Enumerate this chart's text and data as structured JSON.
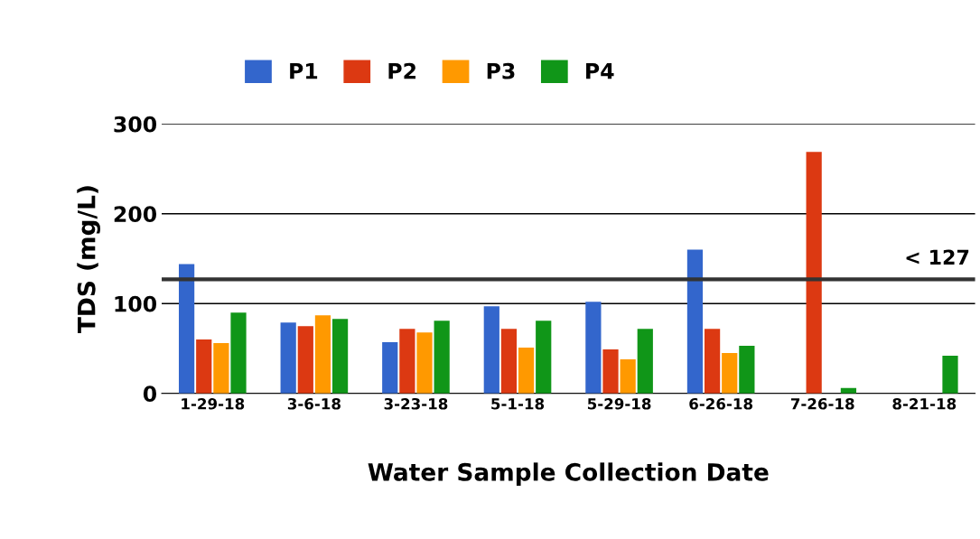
{
  "chart_data": {
    "type": "bar",
    "xlabel": "Water Sample Collection Date",
    "ylabel": "TDS (mg/L)",
    "categories": [
      "1-29-18",
      "3-6-18",
      "3-23-18",
      "5-1-18",
      "5-29-18",
      "6-26-18",
      "7-26-18",
      "8-21-18"
    ],
    "series": [
      {
        "name": "P1",
        "color": "#3366cc",
        "values": [
          144,
          79,
          57,
          97,
          102,
          160,
          null,
          null
        ]
      },
      {
        "name": "P2",
        "color": "#dc3912",
        "values": [
          60,
          75,
          72,
          72,
          49,
          72,
          269,
          null
        ]
      },
      {
        "name": "P3",
        "color": "#ff9900",
        "values": [
          56,
          87,
          68,
          51,
          38,
          45,
          null,
          null
        ]
      },
      {
        "name": "P4",
        "color": "#109618",
        "values": [
          90,
          83,
          81,
          81,
          72,
          53,
          6,
          42
        ]
      }
    ],
    "ylim": [
      0,
      300
    ],
    "yticks": [
      0,
      100,
      200,
      300
    ],
    "grid": "y",
    "legend": "top",
    "ref_lines": [
      {
        "axis": "y",
        "value": 127,
        "label": "< 127",
        "color": "#333333"
      }
    ]
  }
}
